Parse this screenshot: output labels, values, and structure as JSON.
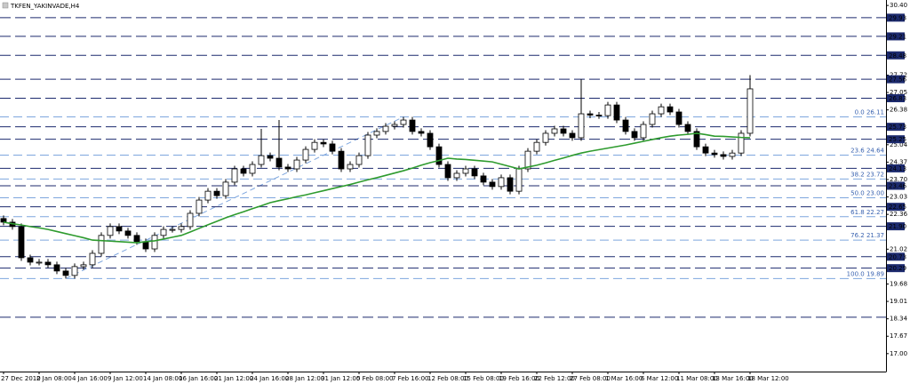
{
  "chart_data": {
    "type": "candlestick",
    "title": "TKFEN_YAKINVADE,H4",
    "categories": [
      "27 Dec 2010",
      null,
      null,
      null,
      "2 Jan 08:00",
      null,
      null,
      null,
      "4 Jan 16:00",
      null,
      null,
      null,
      "9 Jan 12:00",
      null,
      null,
      null,
      "14 Jan 08:00",
      null,
      null,
      null,
      "16 Jan 16:00",
      null,
      null,
      null,
      "21 Jan 12:00",
      null,
      null,
      null,
      "24 Jan 16:00",
      null,
      null,
      null,
      "28 Jan 12:00",
      null,
      null,
      null,
      "31 Jan 12:00",
      null,
      null,
      null,
      "5 Feb 08:00",
      null,
      null,
      null,
      "7 Feb 16:00",
      null,
      null,
      null,
      "12 Feb 08:00",
      null,
      null,
      null,
      "15 Feb 08:00",
      null,
      null,
      null,
      "19 Feb 16:00",
      null,
      null,
      null,
      "22 Feb 12:00",
      null,
      null,
      null,
      "27 Feb 08:00",
      null,
      null,
      null,
      "1 Mar 16:00",
      null,
      null,
      null,
      "6 Mar 12:00",
      null,
      null,
      null,
      "11 Mar 08:00",
      null,
      null,
      null,
      "13 Mar 16:00",
      null,
      null,
      null,
      "18 Mar 12:00"
    ],
    "open": [
      22.2,
      22.06,
      21.89,
      20.69,
      20.52,
      20.52,
      20.42,
      20.18,
      20.01,
      20.35,
      20.42,
      20.86,
      21.55,
      21.89,
      21.72,
      21.55,
      21.31,
      21.03,
      21.55,
      21.78,
      21.78,
      21.89,
      22.4,
      22.91,
      23.25,
      23.08,
      23.6,
      24.11,
      23.94,
      24.28,
      24.62,
      24.52,
      24.18,
      24.11,
      24.45,
      24.86,
      25.13,
      25.07,
      24.79,
      24.11,
      24.28,
      24.62,
      25.41,
      25.55,
      25.75,
      25.82,
      25.99,
      25.55,
      25.48,
      24.96,
      24.28,
      23.77,
      23.94,
      24.11,
      23.84,
      23.6,
      23.43,
      23.77,
      23.25,
      24.11,
      24.79,
      25.13,
      25.48,
      25.65,
      25.48,
      25.31,
      26.23,
      26.18,
      26.16,
      26.57,
      25.99,
      25.55,
      25.31,
      25.82,
      26.23,
      26.5,
      26.3,
      25.82,
      25.55,
      24.96,
      24.72,
      24.66,
      24.59,
      24.72,
      25.48
    ],
    "high": [
      22.32,
      22.18,
      22.01,
      20.81,
      20.64,
      20.64,
      20.54,
      20.3,
      20.47,
      20.54,
      20.98,
      21.67,
      22.01,
      22.01,
      21.84,
      21.67,
      21.43,
      21.67,
      21.9,
      21.9,
      22.01,
      22.52,
      23.03,
      23.37,
      23.37,
      23.72,
      24.23,
      24.23,
      24.4,
      25.65,
      24.74,
      25.99,
      24.3,
      24.57,
      24.98,
      25.25,
      25.25,
      25.19,
      24.91,
      24.4,
      24.74,
      25.53,
      25.67,
      25.87,
      25.94,
      26.11,
      26.11,
      25.67,
      25.6,
      25.08,
      24.4,
      24.06,
      24.23,
      24.23,
      23.96,
      23.72,
      23.89,
      23.89,
      24.23,
      24.91,
      25.25,
      25.6,
      25.77,
      25.77,
      25.6,
      27.56,
      26.35,
      26.3,
      26.69,
      26.69,
      26.11,
      25.67,
      25.94,
      26.35,
      26.62,
      26.62,
      26.42,
      25.94,
      25.67,
      25.08,
      24.84,
      24.78,
      24.84,
      25.6,
      27.72
    ],
    "low": [
      21.94,
      21.77,
      20.57,
      20.4,
      20.4,
      20.3,
      20.06,
      19.89,
      19.89,
      20.23,
      20.3,
      20.74,
      21.43,
      21.6,
      21.43,
      21.19,
      20.91,
      20.91,
      21.43,
      21.66,
      21.66,
      21.77,
      22.28,
      22.79,
      22.96,
      22.96,
      23.48,
      23.82,
      23.82,
      24.16,
      24.4,
      24.06,
      23.99,
      23.99,
      24.33,
      24.74,
      24.95,
      24.67,
      23.99,
      23.99,
      24.16,
      24.5,
      25.29,
      25.43,
      25.63,
      25.7,
      25.43,
      25.36,
      24.84,
      24.16,
      23.65,
      23.65,
      23.82,
      23.72,
      23.48,
      23.31,
      23.31,
      23.13,
      23.13,
      23.99,
      24.67,
      25.01,
      25.36,
      25.36,
      25.19,
      25.19,
      26.06,
      26.04,
      26.04,
      25.87,
      25.43,
      25.19,
      25.19,
      25.7,
      26.11,
      26.18,
      25.7,
      25.43,
      24.84,
      24.6,
      24.54,
      24.47,
      24.47,
      24.6,
      25.36
    ],
    "close": [
      22.06,
      21.89,
      20.69,
      20.52,
      20.52,
      20.42,
      20.18,
      20.01,
      20.35,
      20.42,
      20.86,
      21.55,
      21.89,
      21.72,
      21.55,
      21.31,
      21.03,
      21.55,
      21.78,
      21.78,
      21.89,
      22.4,
      22.91,
      23.25,
      23.08,
      23.6,
      24.11,
      23.94,
      24.28,
      24.62,
      24.52,
      24.18,
      24.11,
      24.45,
      24.86,
      25.13,
      25.07,
      24.79,
      24.11,
      24.28,
      24.62,
      25.41,
      25.55,
      25.75,
      25.82,
      25.99,
      25.55,
      25.48,
      24.96,
      24.28,
      23.77,
      23.94,
      24.11,
      23.84,
      23.6,
      23.43,
      23.77,
      23.25,
      24.11,
      24.79,
      25.13,
      25.48,
      25.65,
      25.48,
      25.31,
      26.23,
      26.18,
      26.16,
      26.57,
      25.99,
      25.55,
      25.31,
      25.82,
      26.23,
      26.5,
      26.3,
      25.82,
      25.55,
      24.96,
      24.72,
      24.66,
      24.59,
      24.72,
      25.48,
      27.19
    ],
    "ma": {
      "color": "#2e9b2e",
      "values": [
        22.06,
        22.0,
        21.95,
        21.89,
        21.84,
        21.78,
        21.7,
        21.62,
        21.54,
        21.46,
        21.37,
        21.35,
        21.33,
        21.31,
        21.29,
        21.27,
        21.31,
        21.34,
        21.41,
        21.48,
        21.55,
        21.68,
        21.82,
        21.96,
        22.09,
        22.23,
        22.35,
        22.46,
        22.58,
        22.69,
        22.81,
        22.89,
        22.96,
        23.04,
        23.11,
        23.19,
        23.27,
        23.35,
        23.43,
        23.51,
        23.6,
        23.69,
        23.77,
        23.86,
        23.95,
        24.04,
        24.14,
        24.25,
        24.35,
        24.43,
        24.52,
        24.49,
        24.47,
        24.44,
        24.41,
        24.38,
        24.29,
        24.2,
        24.11,
        24.18,
        24.25,
        24.34,
        24.44,
        24.53,
        24.63,
        24.72,
        24.79,
        24.85,
        24.91,
        24.97,
        25.03,
        25.1,
        25.17,
        25.24,
        25.31,
        25.37,
        25.41,
        25.44,
        25.48,
        25.43,
        25.37,
        25.36,
        25.34,
        25.32,
        25.31
      ]
    },
    "ylim": [
      16.31,
      30.61
    ],
    "yticks": [
      {
        "value": 30.4,
        "label": "30.40"
      },
      27.72,
      27.05,
      26.38,
      25.04,
      24.37,
      {
        "value": 23.7,
        "label": "23.70"
      },
      23.03,
      22.36,
      21.02,
      19.68,
      19.01,
      18.34,
      17.67,
      {
        "value": 17,
        "label": "17.00"
      }
    ],
    "levels": [
      29.93,
      29.21,
      28.48,
      27.56,
      26.83,
      25.73,
      25.25,
      24.13,
      23.46,
      22.65,
      {
        "value": 21.9,
        "label": "21.90"
      },
      20.73,
      20.29
    ],
    "hlines": [
      18.4
    ],
    "level_color": "#1c2a6e",
    "fib_color": "#7ea6de",
    "fib": [
      {
        "ratio": "100.0",
        "value": 19.89
      },
      {
        "ratio": "76.2",
        "value": 21.37
      },
      {
        "ratio": "61.8",
        "value": 22.27
      },
      {
        "ratio": "50.0",
        "value": {
          "value": 23,
          "label": "23.00"
        }
      },
      {
        "ratio": "38.2",
        "value": 23.72
      },
      {
        "ratio": "23.6",
        "value": 24.64
      },
      {
        "ratio": "0.0",
        "value": 26.11
      }
    ]
  }
}
